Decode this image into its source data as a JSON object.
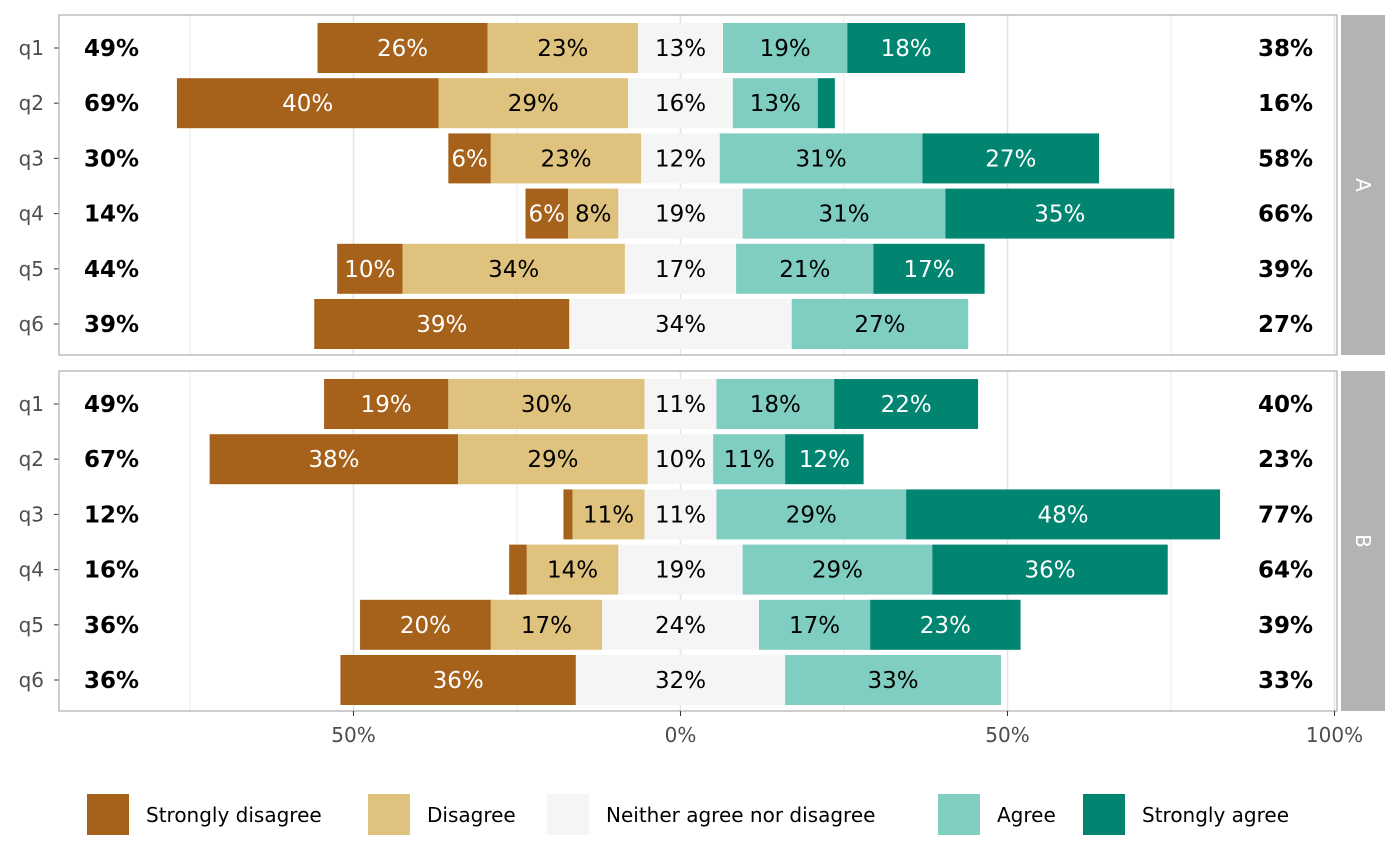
{
  "chart_data": {
    "type": "bar",
    "subtype": "diverging-stacked-likert",
    "title": "",
    "xlabel": "",
    "ylabel": "",
    "xlim": [
      -100,
      100
    ],
    "x_ticks": [
      -50,
      0,
      50,
      100
    ],
    "x_tick_labels": [
      "50%",
      "0%",
      "50%",
      "100%"
    ],
    "grid": true,
    "legend_position": "bottom",
    "levels": [
      "Strongly disagree",
      "Disagree",
      "Neither agree nor disagree",
      "Agree",
      "Strongly agree"
    ],
    "colors": [
      "#a6611a",
      "#dfc27d",
      "#f5f5f5",
      "#80cdc1",
      "#018571"
    ],
    "label_colors": [
      "#ffffff",
      "#000000",
      "#000000",
      "#000000",
      "#ffffff"
    ],
    "categories": [
      "q1",
      "q2",
      "q3",
      "q4",
      "q5",
      "q6"
    ],
    "panels": [
      {
        "name": "A",
        "rows": [
          {
            "item": "q1",
            "values": [
              26,
              23,
              13,
              19,
              18
            ],
            "labels": [
              "26%",
              "23%",
              "13%",
              "19%",
              "18%"
            ],
            "left_total": "49%",
            "right_total": "38%"
          },
          {
            "item": "q2",
            "values": [
              40,
              29,
              16,
              13,
              2.6
            ],
            "labels": [
              "40%",
              "29%",
              "16%",
              "13%",
              ""
            ],
            "left_total": "69%",
            "right_total": "16%"
          },
          {
            "item": "q3",
            "values": [
              6.5,
              23,
              12,
              31,
              27
            ],
            "labels": [
              "6%",
              "23%",
              "12%",
              "31%",
              "27%"
            ],
            "left_total": "30%",
            "right_total": "58%"
          },
          {
            "item": "q4",
            "values": [
              6.5,
              7.7,
              19,
              31,
              35
            ],
            "labels": [
              "6%",
              "8%",
              "19%",
              "31%",
              "35%"
            ],
            "left_total": "14%",
            "right_total": "66%"
          },
          {
            "item": "q5",
            "values": [
              10,
              34,
              17,
              21,
              17
            ],
            "labels": [
              "10%",
              "34%",
              "17%",
              "21%",
              "17%"
            ],
            "left_total": "44%",
            "right_total": "39%"
          },
          {
            "item": "q6",
            "values": [
              39,
              0,
              34,
              27,
              0
            ],
            "labels": [
              "39%",
              "",
              "34%",
              "27%",
              ""
            ],
            "left_total": "39%",
            "right_total": "27%"
          }
        ]
      },
      {
        "name": "B",
        "rows": [
          {
            "item": "q1",
            "values": [
              19,
              30,
              11,
              18,
              22
            ],
            "labels": [
              "19%",
              "30%",
              "11%",
              "18%",
              "22%"
            ],
            "left_total": "49%",
            "right_total": "40%"
          },
          {
            "item": "q2",
            "values": [
              38,
              29,
              10,
              11,
              12
            ],
            "labels": [
              "38%",
              "29%",
              "10%",
              "11%",
              "12%"
            ],
            "left_total": "67%",
            "right_total": "23%"
          },
          {
            "item": "q3",
            "values": [
              1.4,
              11,
              11,
              29,
              48
            ],
            "labels": [
              "",
              "11%",
              "11%",
              "29%",
              "48%"
            ],
            "left_total": "12%",
            "right_total": "77%"
          },
          {
            "item": "q4",
            "values": [
              2.7,
              14,
              19,
              29,
              36
            ],
            "labels": [
              "",
              "14%",
              "19%",
              "29%",
              "36%"
            ],
            "left_total": "16%",
            "right_total": "64%"
          },
          {
            "item": "q5",
            "values": [
              20,
              17,
              24,
              17,
              23
            ],
            "labels": [
              "20%",
              "17%",
              "24%",
              "17%",
              "23%"
            ],
            "left_total": "36%",
            "right_total": "39%"
          },
          {
            "item": "q6",
            "values": [
              36,
              0,
              32,
              33,
              0
            ],
            "labels": [
              "36%",
              "",
              "32%",
              "33%",
              ""
            ],
            "left_total": "36%",
            "right_total": "33%"
          }
        ]
      }
    ]
  }
}
